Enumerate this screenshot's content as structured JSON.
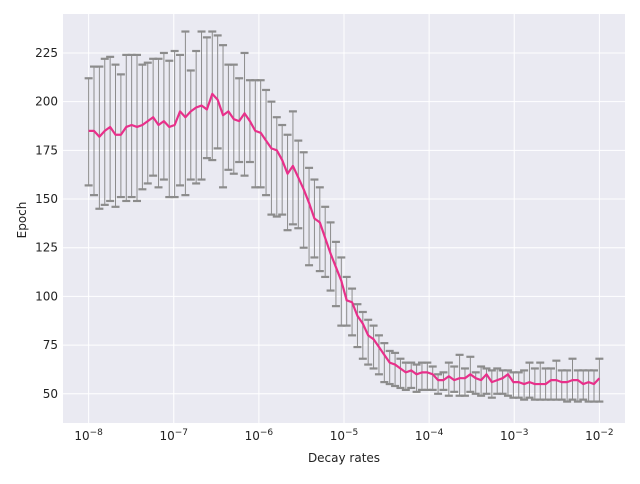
{
  "chart_data": {
    "type": "line",
    "xlabel": "Decay rates",
    "ylabel": "Epoch",
    "x_scale": "log",
    "xlim": [
      5e-09,
      0.02
    ],
    "ylim": [
      35,
      245
    ],
    "x_ticks": [
      {
        "value": 1e-08,
        "base": "10",
        "exp": "−8"
      },
      {
        "value": 1e-07,
        "base": "10",
        "exp": "−7"
      },
      {
        "value": 1e-06,
        "base": "10",
        "exp": "−6"
      },
      {
        "value": 1e-05,
        "base": "10",
        "exp": "−5"
      },
      {
        "value": 0.0001,
        "base": "10",
        "exp": "−4"
      },
      {
        "value": 0.001,
        "base": "10",
        "exp": "−3"
      },
      {
        "value": 0.01,
        "base": "10",
        "exp": "−2"
      }
    ],
    "y_ticks": [
      50,
      75,
      100,
      125,
      150,
      175,
      200,
      225
    ],
    "grid": true,
    "colors": {
      "background": "#EAEAF2",
      "grid": "#FFFFFF",
      "line": "#E8308A",
      "errorbar": "#8C8C8C"
    },
    "series": [
      {
        "x_log10_start": -8,
        "x_log10_end": -2,
        "x_count": 96,
        "values": [
          185,
          185,
          182,
          185,
          187,
          183,
          183,
          187,
          188,
          187,
          188,
          190,
          192,
          188,
          190,
          187,
          188,
          195,
          192,
          195,
          197,
          198,
          196,
          204,
          201,
          193,
          195,
          191,
          190,
          194,
          190,
          185,
          184,
          180,
          176,
          175,
          170,
          163,
          167,
          161,
          155,
          148,
          140,
          138,
          130,
          122,
          115,
          108,
          98,
          97,
          90,
          86,
          80,
          78,
          74,
          70,
          66,
          65,
          63,
          61,
          62,
          60,
          61,
          61,
          60,
          57,
          57,
          59,
          57,
          58,
          58,
          60,
          58,
          57,
          60,
          56,
          57,
          58,
          60,
          56,
          56,
          55,
          56,
          55,
          55,
          55,
          57,
          57,
          56,
          56,
          57,
          57,
          55,
          56,
          55,
          58
        ],
        "err_upper": [
          212,
          218,
          218,
          222,
          223,
          219,
          214,
          224,
          224,
          224,
          219,
          220,
          222,
          222,
          225,
          221,
          226,
          224,
          236,
          216,
          226,
          236,
          233,
          236,
          234,
          229,
          219,
          219,
          212,
          225,
          211,
          211,
          211,
          206,
          200,
          192,
          188,
          183,
          195,
          180,
          174,
          166,
          160,
          156,
          146,
          138,
          128,
          120,
          110,
          104,
          96,
          92,
          88,
          85,
          80,
          76,
          72,
          71,
          68,
          66,
          66,
          65,
          66,
          66,
          64,
          60,
          61,
          66,
          64,
          70,
          63,
          69,
          61,
          64,
          63,
          62,
          63,
          62,
          62,
          61,
          61,
          62,
          66,
          63,
          66,
          63,
          63,
          67,
          62,
          62,
          68,
          62,
          62,
          62,
          62,
          68
        ],
        "err_lower": [
          157,
          152,
          145,
          147,
          149,
          146,
          151,
          149,
          151,
          149,
          155,
          158,
          162,
          156,
          160,
          151,
          151,
          157,
          152,
          160,
          158,
          160,
          171,
          170,
          176,
          156,
          165,
          163,
          169,
          162,
          169,
          156,
          156,
          152,
          142,
          141,
          142,
          134,
          137,
          135,
          125,
          116,
          120,
          113,
          110,
          103,
          95,
          85,
          85,
          80,
          74,
          68,
          65,
          63,
          60,
          56,
          55,
          54,
          53,
          52,
          53,
          51,
          52,
          52,
          52,
          50,
          52,
          49,
          51,
          49,
          49,
          51,
          50,
          49,
          50,
          48,
          50,
          50,
          49,
          48,
          48,
          47,
          48,
          47,
          47,
          47,
          47,
          47,
          47,
          46,
          47,
          46,
          47,
          46,
          46,
          46
        ]
      }
    ]
  }
}
